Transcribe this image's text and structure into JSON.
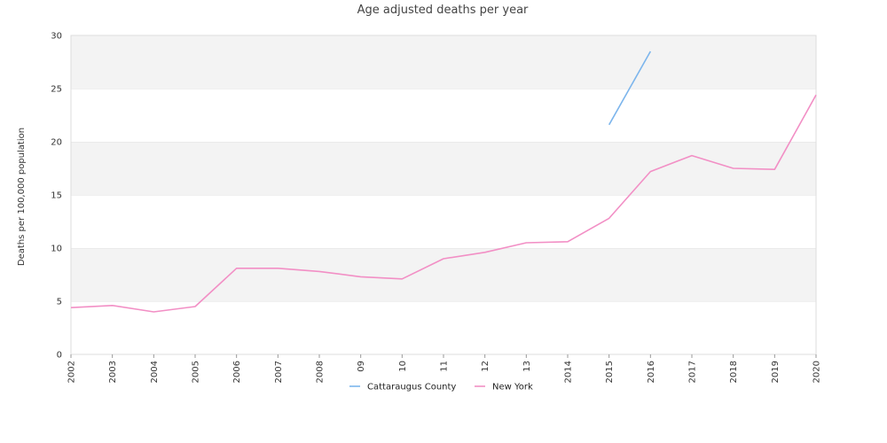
{
  "chart_data": {
    "type": "line",
    "title": "Age adjusted deaths per year",
    "xlabel": "",
    "ylabel": "Deaths per 100,000 population",
    "x": [
      "2002",
      "2003",
      "2004",
      "2005",
      "2006",
      "2007",
      "2008",
      "09",
      "10",
      "11",
      "12",
      "13",
      "2014",
      "2015",
      "2016",
      "2017",
      "2018",
      "2019",
      "2020"
    ],
    "ylim": [
      0,
      30
    ],
    "yticks": [
      "0",
      "5",
      "10",
      "15",
      "20",
      "25",
      "30"
    ],
    "grid": "banded",
    "legend": "bottom",
    "series": [
      {
        "name": "Cattaraugus County",
        "color": "#7cb5ec",
        "values": [
          null,
          null,
          null,
          null,
          null,
          null,
          null,
          null,
          null,
          null,
          null,
          null,
          null,
          21.6,
          28.5,
          null,
          null,
          null,
          null
        ]
      },
      {
        "name": "New York",
        "color": "#f28fc5",
        "values": [
          4.4,
          4.6,
          4.0,
          4.5,
          8.1,
          8.1,
          7.8,
          7.3,
          7.1,
          9.0,
          9.6,
          10.5,
          10.6,
          12.8,
          17.2,
          18.7,
          17.5,
          17.4,
          24.4
        ]
      }
    ]
  }
}
